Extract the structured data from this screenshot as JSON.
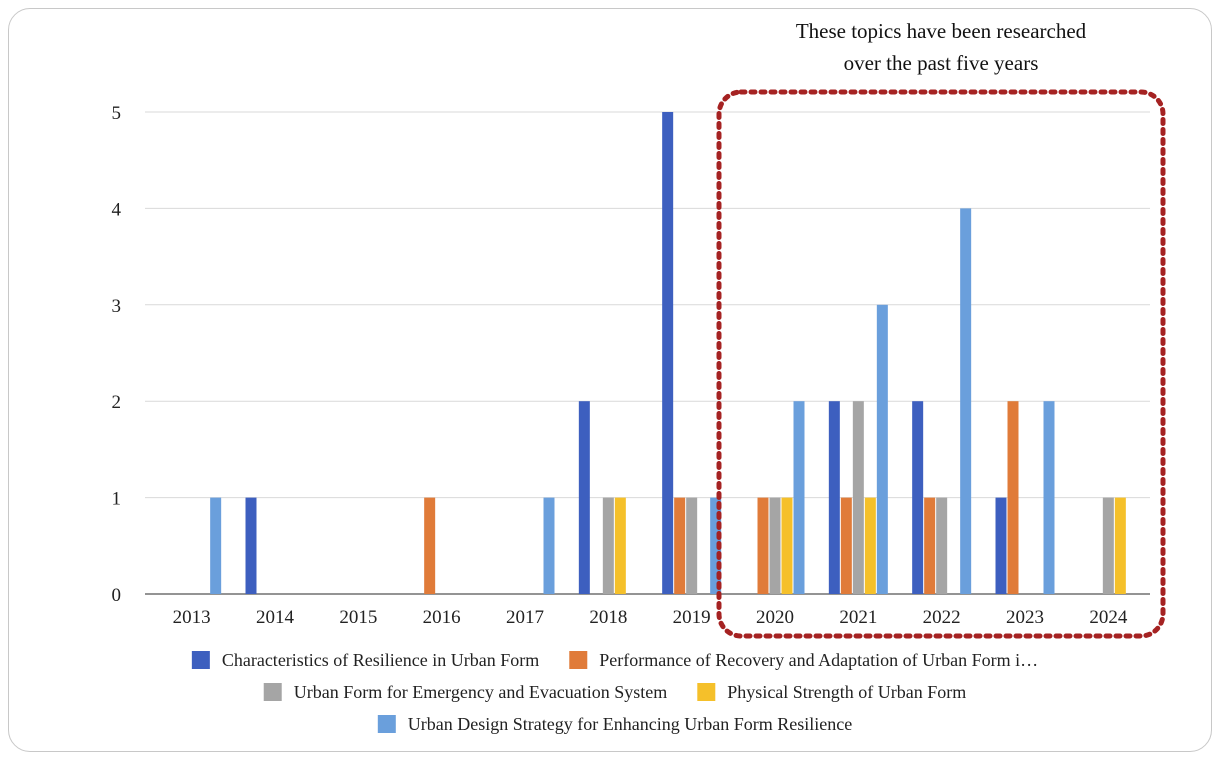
{
  "chart_data": {
    "type": "bar",
    "title": "",
    "xlabel": "",
    "ylabel": "",
    "categories": [
      "2013",
      "2014",
      "2015",
      "2016",
      "2017",
      "2018",
      "2019",
      "2020",
      "2021",
      "2022",
      "2023",
      "2024"
    ],
    "ylim": [
      0,
      5
    ],
    "yticks": [
      0,
      1,
      2,
      3,
      4,
      5
    ],
    "grid": true,
    "legend_position": "bottom",
    "series": [
      {
        "name": "Characteristics of Resilience in Urban Form",
        "color": "#3d5fbf",
        "values": [
          0,
          1,
          0,
          0,
          0,
          2,
          5,
          0,
          2,
          2,
          1,
          0
        ]
      },
      {
        "name": "Performance of Recovery and Adaptation of Urban Form i…",
        "color": "#e07b39",
        "values": [
          0,
          0,
          0,
          1,
          0,
          0,
          1,
          1,
          1,
          1,
          2,
          0
        ]
      },
      {
        "name": "Urban Form for Emergency and Evacuation System",
        "color": "#a5a5a5",
        "values": [
          0,
          0,
          0,
          0,
          0,
          1,
          1,
          1,
          2,
          1,
          0,
          1
        ]
      },
      {
        "name": "Physical Strength of Urban Form",
        "color": "#f5c02a",
        "values": [
          0,
          0,
          0,
          0,
          0,
          1,
          0,
          1,
          1,
          0,
          0,
          1
        ]
      },
      {
        "name": "Urban Design Strategy for Enhancing Urban Form Resilience",
        "color": "#6a9fdc",
        "values": [
          1,
          0,
          0,
          0,
          1,
          0,
          1,
          2,
          3,
          4,
          2,
          0
        ]
      }
    ],
    "annotation": {
      "lines": [
        "These topics have been researched",
        "over the past five years"
      ],
      "highlight_color": "#a52222",
      "covers_categories": [
        "2020",
        "2021",
        "2022",
        "2023",
        "2024"
      ]
    }
  }
}
